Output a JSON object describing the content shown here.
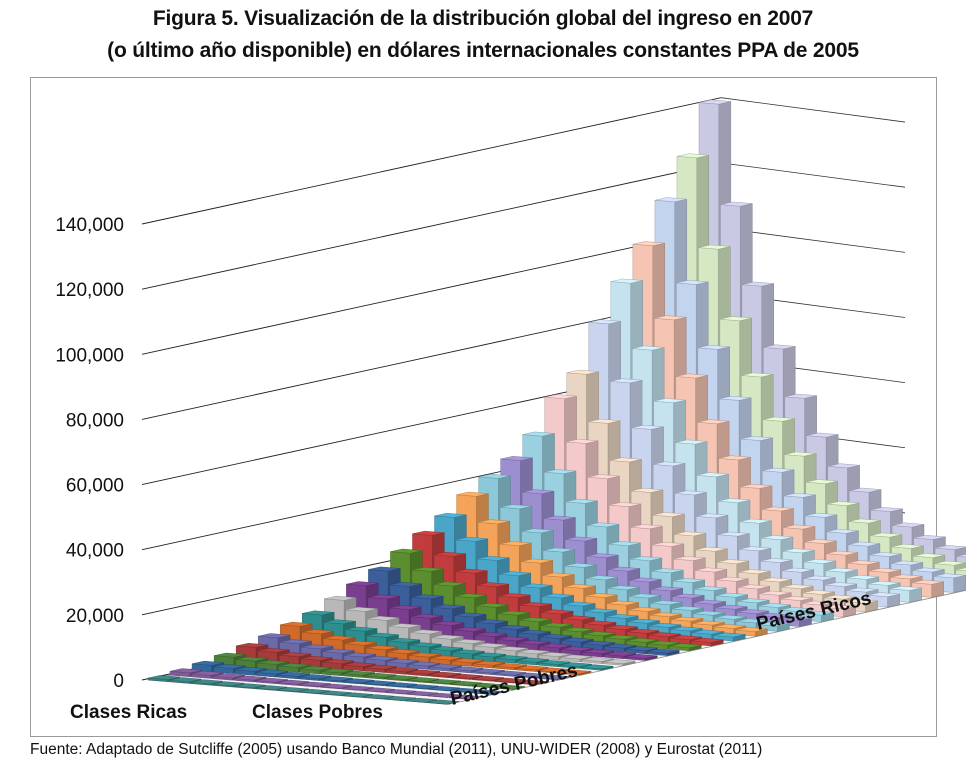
{
  "chart_data": {
    "type": "bar",
    "style": "3d",
    "title": "Figura 5. Visualización de la distribución global del ingreso en 2007",
    "subtitle": "(o último año disponible)  en dólares internacionales constantes PPA de 2005",
    "ylim": [
      0,
      140000
    ],
    "yticks": [
      "0",
      "20,000",
      "40,000",
      "60,000",
      "80,000",
      "100,000",
      "120,000",
      "140,000"
    ],
    "ytick_values": [
      0,
      20000,
      40000,
      60000,
      80000,
      100000,
      120000,
      140000
    ],
    "grid": true,
    "x_axis_labels": [
      "Clases Ricas",
      "Clases Pobres"
    ],
    "depth_axis_labels": [
      "Países Pobres",
      "Países Ricos"
    ],
    "row_peaks": [
      140000,
      125000,
      113000,
      101000,
      91000,
      80000,
      66000,
      60000,
      50000,
      44000,
      40000,
      36000,
      31000,
      27000,
      23000,
      19000,
      16000,
      13000,
      10000,
      8000,
      6000,
      4500,
      3000,
      2000,
      1200,
      600
    ],
    "row_decay": 0.78,
    "colors": [
      "#c9c9e4",
      "#d5e8c3",
      "#c3d4ef",
      "#f5c4b2",
      "#c4e3ef",
      "#c9d5ee",
      "#e9d6c2",
      "#f3c9c9",
      "#9bd0e0",
      "#9d8ed0",
      "#8cc8d8",
      "#f4a35a",
      "#4aa6c8",
      "#c13d3d",
      "#5a8e2e",
      "#3a5f9a",
      "#7a3e8e",
      "#b8b8b8",
      "#2e8d8d",
      "#d06a2a",
      "#6a6aa8",
      "#a63b3b",
      "#4b7f3a",
      "#33669a",
      "#7f5a99",
      "#3d8080"
    ]
  },
  "source": "Fuente: Adaptado de Sutcliffe (2005) usando Banco Mundial (2011), UNU-WIDER (2008) y Eurostat (2011)"
}
